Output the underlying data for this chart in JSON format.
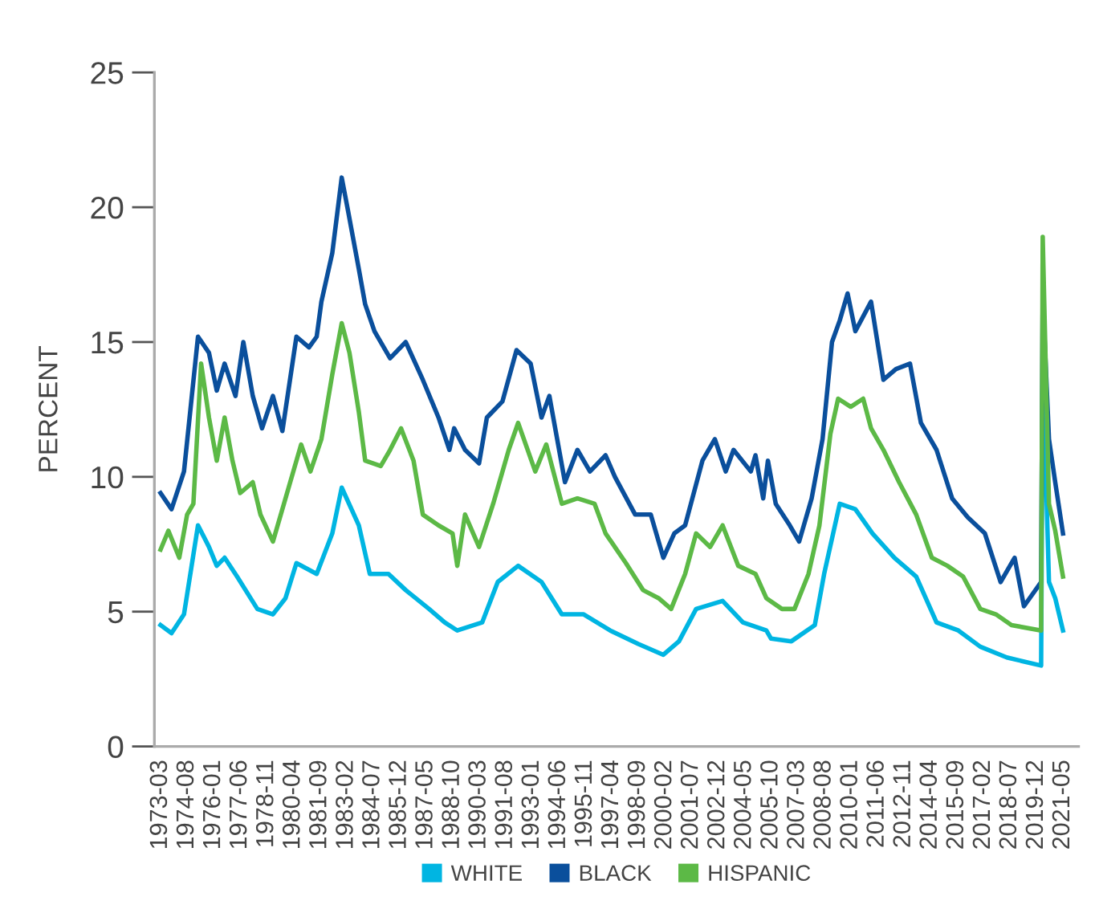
{
  "chart_data": {
    "type": "line",
    "ylabel": "PERCENT",
    "ylim": [
      0,
      25
    ],
    "yticks": [
      0,
      5,
      10,
      15,
      20,
      25
    ],
    "xlim": [
      "1972-11",
      "2022-03"
    ],
    "xticks": [
      "1973-03",
      "1974-08",
      "1976-01",
      "1977-06",
      "1978-11",
      "1980-04",
      "1981-09",
      "1983-02",
      "1984-07",
      "1985-12",
      "1987-05",
      "1988-10",
      "1990-03",
      "1991-08",
      "1993-01",
      "1994-06",
      "1995-11",
      "1997-04",
      "1998-09",
      "2000-02",
      "2001-07",
      "2002-12",
      "2004-05",
      "2005-10",
      "2007-03",
      "2008-08",
      "2010-01",
      "2011-06",
      "2012-11",
      "2014-04",
      "2015-09",
      "2017-02",
      "2018-07",
      "2019-12",
      "2021-05"
    ],
    "grid": false,
    "legend": "bottom",
    "marker": "none",
    "line_style": "solid",
    "series": [
      {
        "name": "WHITE",
        "color": "#00b5e2",
        "x": [
          "1973-03",
          "1973-10",
          "1974-06",
          "1975-03",
          "1975-10",
          "1976-03",
          "1976-08",
          "1977-04",
          "1978-05",
          "1979-03",
          "1979-11",
          "1980-06",
          "1981-07",
          "1982-05",
          "1982-11",
          "1983-10",
          "1984-05",
          "1985-05",
          "1986-04",
          "1987-07",
          "1988-05",
          "1989-01",
          "1990-05",
          "1991-03",
          "1992-04",
          "1993-07",
          "1994-08",
          "1995-10",
          "1997-03",
          "1998-09",
          "2000-01",
          "2000-11",
          "2001-10",
          "2003-03",
          "2004-04",
          "2005-07",
          "2005-10",
          "2006-11",
          "2008-02",
          "2008-08",
          "2009-06",
          "2010-04",
          "2011-03",
          "2012-05",
          "2013-07",
          "2014-08",
          "2015-10",
          "2016-12",
          "2018-05",
          "2020-03",
          "2020-04",
          "2020-08",
          "2020-12",
          "2021-05"
        ],
        "values": [
          4.5,
          4.2,
          4.9,
          8.2,
          7.4,
          6.7,
          7.0,
          6.3,
          5.1,
          4.9,
          5.5,
          6.8,
          6.4,
          7.9,
          9.6,
          8.2,
          6.4,
          6.4,
          5.8,
          5.1,
          4.6,
          4.3,
          4.6,
          6.1,
          6.7,
          6.1,
          4.9,
          4.9,
          4.3,
          3.8,
          3.4,
          3.9,
          5.1,
          5.4,
          4.6,
          4.3,
          4.0,
          3.9,
          4.5,
          6.4,
          9.0,
          8.8,
          7.9,
          7.0,
          6.3,
          4.6,
          4.3,
          3.7,
          3.3,
          3.0,
          14.2,
          6.1,
          5.5,
          4.3
        ]
      },
      {
        "name": "BLACK",
        "color": "#0a4f9c",
        "x": [
          "1973-03",
          "1973-10",
          "1974-06",
          "1975-03",
          "1975-10",
          "1976-03",
          "1976-08",
          "1977-03",
          "1977-08",
          "1978-02",
          "1978-08",
          "1979-03",
          "1979-09",
          "1980-06",
          "1981-02",
          "1981-07",
          "1981-10",
          "1982-05",
          "1982-11",
          "1983-03",
          "1983-10",
          "1984-02",
          "1984-08",
          "1985-06",
          "1986-04",
          "1987-03",
          "1988-01",
          "1988-08",
          "1988-11",
          "1989-06",
          "1990-03",
          "1990-08",
          "1991-06",
          "1992-03",
          "1992-12",
          "1993-07",
          "1993-12",
          "1994-10",
          "1995-06",
          "1996-02",
          "1996-12",
          "1997-06",
          "1998-07",
          "1999-05",
          "2000-01",
          "2000-08",
          "2001-03",
          "2002-02",
          "2002-10",
          "2003-05",
          "2003-10",
          "2004-09",
          "2004-12",
          "2005-05",
          "2005-08",
          "2006-01",
          "2006-10",
          "2007-04",
          "2007-12",
          "2008-07",
          "2009-01",
          "2009-06",
          "2009-11",
          "2010-04",
          "2011-02",
          "2011-10",
          "2012-06",
          "2013-03",
          "2013-10",
          "2014-08",
          "2015-06",
          "2016-04",
          "2017-03",
          "2018-01",
          "2018-10",
          "2019-04",
          "2020-03",
          "2020-04",
          "2020-08",
          "2020-12",
          "2021-05"
        ],
        "values": [
          9.4,
          8.8,
          10.2,
          15.2,
          14.6,
          13.2,
          14.2,
          13.0,
          15.0,
          13.0,
          11.8,
          13.0,
          11.7,
          15.2,
          14.8,
          15.2,
          16.5,
          18.3,
          21.1,
          19.9,
          17.7,
          16.4,
          15.4,
          14.4,
          15.0,
          13.6,
          12.2,
          11.0,
          11.8,
          11.0,
          10.5,
          12.2,
          12.8,
          14.7,
          14.2,
          12.2,
          13.0,
          9.8,
          11.0,
          10.2,
          10.8,
          10.0,
          8.6,
          8.6,
          7.0,
          7.9,
          8.2,
          10.6,
          11.4,
          10.2,
          11.0,
          10.2,
          10.8,
          9.2,
          10.6,
          9.0,
          8.2,
          7.6,
          9.2,
          11.4,
          15.0,
          15.8,
          16.8,
          15.4,
          16.5,
          13.6,
          14.0,
          14.2,
          12.0,
          11.0,
          9.2,
          8.5,
          7.9,
          6.1,
          7.0,
          5.2,
          6.1,
          16.7,
          11.4,
          9.8,
          7.9
        ]
      },
      {
        "name": "HISPANIC",
        "color": "#5cb946",
        "x": [
          "1973-03",
          "1973-08",
          "1974-03",
          "1974-08",
          "1974-12",
          "1975-05",
          "1975-10",
          "1976-03",
          "1976-08",
          "1977-01",
          "1977-06",
          "1978-02",
          "1978-07",
          "1979-03",
          "1979-10",
          "1980-09",
          "1981-03",
          "1981-10",
          "1982-05",
          "1982-11",
          "1983-04",
          "1983-10",
          "1984-02",
          "1984-12",
          "1985-06",
          "1986-01",
          "1986-09",
          "1987-03",
          "1988-01",
          "1988-10",
          "1989-01",
          "1989-06",
          "1990-03",
          "1990-12",
          "1991-10",
          "1992-04",
          "1993-03",
          "1993-10",
          "1994-08",
          "1995-06",
          "1996-05",
          "1996-12",
          "1998-01",
          "1998-12",
          "1999-10",
          "2000-06",
          "2001-03",
          "2001-10",
          "2002-07",
          "2003-03",
          "2004-01",
          "2004-12",
          "2005-07",
          "2006-05",
          "2007-01",
          "2007-10",
          "2008-05",
          "2008-12",
          "2009-05",
          "2010-01",
          "2010-09",
          "2011-02",
          "2011-10",
          "2012-08",
          "2013-07",
          "2014-05",
          "2015-03",
          "2016-01",
          "2016-12",
          "2017-10",
          "2018-08",
          "2020-03",
          "2020-04",
          "2020-08",
          "2020-12",
          "2021-05"
        ],
        "values": [
          7.3,
          8.0,
          7.0,
          8.6,
          9.0,
          14.2,
          12.2,
          10.6,
          12.2,
          10.6,
          9.4,
          9.8,
          8.6,
          7.6,
          9.0,
          11.2,
          10.2,
          11.4,
          13.8,
          15.7,
          14.6,
          12.4,
          10.6,
          10.4,
          11.0,
          11.8,
          10.6,
          8.6,
          8.2,
          7.9,
          6.7,
          8.6,
          7.4,
          9.0,
          11.0,
          12.0,
          10.2,
          11.2,
          9.0,
          9.2,
          9.0,
          7.9,
          6.8,
          5.8,
          5.5,
          5.1,
          6.4,
          7.9,
          7.4,
          8.2,
          6.7,
          6.4,
          5.5,
          5.1,
          5.1,
          6.4,
          8.2,
          11.6,
          12.9,
          12.6,
          12.9,
          11.8,
          11.0,
          9.8,
          8.6,
          7.0,
          6.7,
          6.3,
          5.1,
          4.9,
          4.5,
          4.3,
          18.9,
          9.0,
          8.0,
          6.3
        ]
      }
    ]
  }
}
